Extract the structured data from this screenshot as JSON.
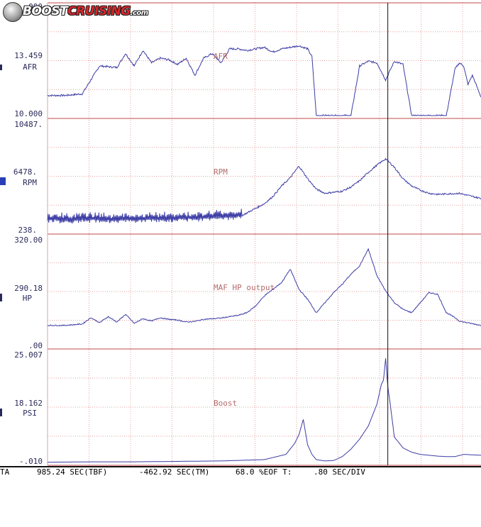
{
  "logo": {
    "part1": "BOOST",
    "part2": "CRUISING",
    "part3": ".com"
  },
  "status_bar": {
    "left": "TA",
    "tbf": "985.24 SEC(TBF)",
    "tm": "-462.92 SEC(TM)",
    "eof": "68.0 %EOF T:",
    "div": ".80 SEC/DIV"
  },
  "colors": {
    "trace": "#3c3ca6",
    "grid_dot": "#e2a3a3",
    "separator": "#c04a4a",
    "cursor": "#111111",
    "marker": "#2a3fb5"
  },
  "chart_data": [
    {
      "type": "line",
      "channel": "AFR",
      "title": "AFR",
      "ylabel": "AFR",
      "ylim_labels": {
        "top": "000",
        "mid": "13.459",
        "bottom": "10.000"
      },
      "ylim": [
        10.0,
        16.9
      ],
      "x": [
        0,
        4,
        8,
        12,
        16,
        18,
        20,
        22,
        24,
        26,
        28,
        30,
        32,
        34,
        36,
        38,
        40,
        42,
        44,
        46,
        48,
        50,
        52,
        54,
        56,
        58,
        60,
        61,
        62,
        64,
        66,
        68,
        70,
        72,
        74,
        76,
        78,
        80,
        82,
        84,
        86,
        88,
        90,
        92,
        94,
        95,
        96,
        97,
        98,
        100
      ],
      "values": [
        11.3,
        11.3,
        11.4,
        13.2,
        13.1,
        14.0,
        13.2,
        14.2,
        13.4,
        13.7,
        13.6,
        13.3,
        13.7,
        12.6,
        13.7,
        14.0,
        13.4,
        14.3,
        14.3,
        14.2,
        14.3,
        14.4,
        14.1,
        14.3,
        14.4,
        14.5,
        14.3,
        13.8,
        10.0,
        10.0,
        10.0,
        10.0,
        10.0,
        13.2,
        13.5,
        13.4,
        12.3,
        13.5,
        13.3,
        10.0,
        10.0,
        10.0,
        10.0,
        10.0,
        13.0,
        13.4,
        13.2,
        12.0,
        12.6,
        11.2
      ]
    },
    {
      "type": "line",
      "channel": "RPM",
      "title": "RPM",
      "ylabel": "RPM",
      "ylim_labels": {
        "top": "10487.",
        "mid": "6478.",
        "bottom": "238."
      },
      "ylim": [
        238,
        10487
      ],
      "x": [
        0,
        5,
        10,
        15,
        20,
        25,
        30,
        35,
        40,
        45,
        50,
        52,
        54,
        56,
        58,
        60,
        62,
        64,
        66,
        68,
        70,
        72,
        74,
        76,
        78,
        80,
        82,
        84,
        86,
        88,
        90,
        95,
        100
      ],
      "values": [
        1400,
        1300,
        1400,
        1300,
        1350,
        1400,
        1450,
        1500,
        1600,
        1700,
        2800,
        3500,
        4500,
        5300,
        6400,
        5200,
        4200,
        3800,
        3900,
        4000,
        4400,
        5000,
        5800,
        6500,
        7100,
        6300,
        5200,
        4500,
        4100,
        3800,
        3700,
        3800,
        3300
      ]
    },
    {
      "type": "line",
      "channel": "HP",
      "title": "MAF HP output",
      "ylabel": "HP",
      "ylim_labels": {
        "top": "320.00",
        "mid": "290.18",
        "bottom": ".00"
      },
      "ylim": [
        0,
        320
      ],
      "x": [
        0,
        4,
        8,
        10,
        12,
        14,
        16,
        18,
        20,
        22,
        24,
        26,
        28,
        30,
        32,
        34,
        36,
        38,
        40,
        42,
        44,
        46,
        48,
        50,
        52,
        54,
        56,
        58,
        60,
        62,
        64,
        66,
        68,
        70,
        72,
        74,
        76,
        78,
        80,
        82,
        84,
        86,
        88,
        90,
        92,
        94,
        95,
        96,
        100
      ],
      "values": [
        62,
        62,
        66,
        85,
        70,
        88,
        72,
        95,
        68,
        82,
        75,
        85,
        80,
        78,
        72,
        74,
        80,
        82,
        84,
        88,
        92,
        100,
        120,
        150,
        170,
        190,
        230,
        170,
        140,
        100,
        130,
        160,
        185,
        215,
        240,
        290,
        210,
        165,
        130,
        110,
        100,
        130,
        160,
        155,
        100,
        85,
        75,
        72,
        62
      ]
    },
    {
      "type": "line",
      "channel": "PSI",
      "title": "Boost",
      "ylabel": "PSI",
      "ylim_labels": {
        "top": "25.007",
        "mid": "18.162",
        "bottom": "-.010"
      },
      "ylim": [
        -0.01,
        25.007
      ],
      "x": [
        0,
        10,
        20,
        30,
        40,
        50,
        55,
        57,
        58,
        59,
        60,
        61,
        62,
        64,
        66,
        68,
        70,
        72,
        74,
        76,
        77,
        77.5,
        78,
        78.5,
        79,
        80,
        82,
        84,
        86,
        88,
        90,
        92,
        94,
        96,
        100
      ],
      "values": [
        0.2,
        0.3,
        0.3,
        0.4,
        0.5,
        0.8,
        2.0,
        4.5,
        6.5,
        10.0,
        4.2,
        2.0,
        0.8,
        0.5,
        0.6,
        1.5,
        3.2,
        5.5,
        8.5,
        13.5,
        18.0,
        19.0,
        24.0,
        17.5,
        14.0,
        6.0,
        3.5,
        2.5,
        2.0,
        1.8,
        1.6,
        1.5,
        1.5,
        2.0,
        1.8
      ]
    }
  ],
  "cursor_x": 78.5
}
